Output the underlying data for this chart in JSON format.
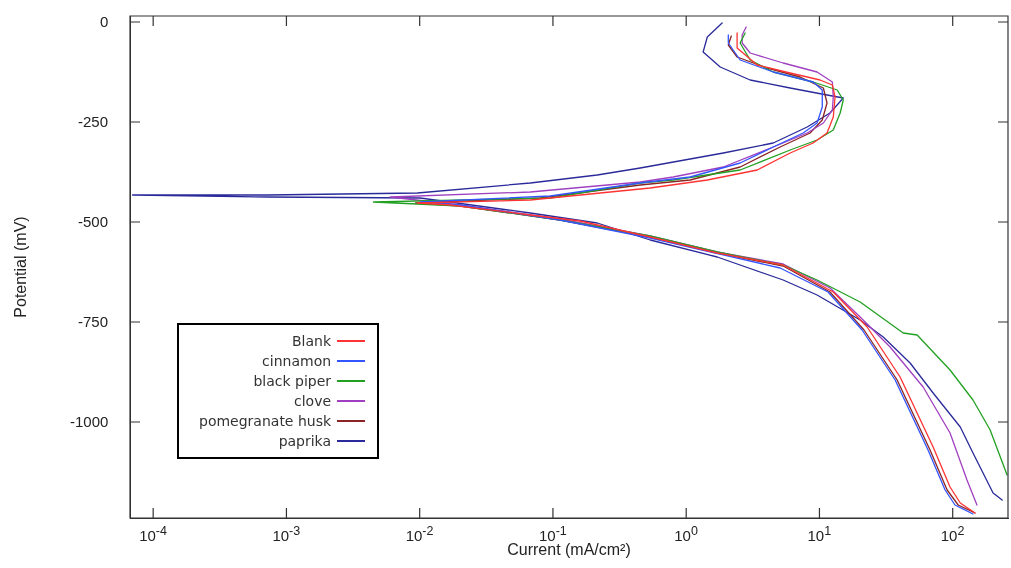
{
  "chart_data": {
    "type": "line",
    "xlabel": "Current (mA/cm²)",
    "ylabel": "Potential (mV)",
    "log": "x",
    "grid": false,
    "legend": "bottom left",
    "marker": "none",
    "line_style": "solid",
    "xlim": [
      6.7e-05,
      260
    ],
    "ylim": [
      -1240,
      15
    ],
    "xticks": [
      {
        "value": 0.0001,
        "label": "10$^{-4}$"
      },
      {
        "value": 0.001,
        "label": "10$^{-3}$"
      },
      {
        "value": 0.01,
        "label": "10$^{-2}$"
      },
      {
        "value": 0.1,
        "label": "10$^{-1}$"
      },
      {
        "value": 1,
        "label": "10$^{0}$"
      },
      {
        "value": 10,
        "label": "10$^{1}$"
      },
      {
        "value": 100,
        "label": "10$^{2}$"
      }
    ],
    "yticks": [
      0,
      -250,
      -500,
      -750,
      -1000
    ],
    "series": [
      {
        "name": "Blank",
        "color": "#ff3333",
        "x": [
          2.41,
          2.41,
          3.41,
          6.03,
          10.1,
          12.5,
          13.1,
          12.7,
          11.4,
          8.97,
          6.03,
          3.41,
          1.44,
          0.537,
          0.0676,
          0.0096,
          0.017,
          0.0676,
          0.16,
          0.537,
          1.71,
          5.34,
          12.7,
          22.8,
          40.3,
          71.3,
          95.5,
          114,
          147
        ],
        "values": [
          -27.5,
          -65,
          -107.5,
          -127.5,
          -145,
          -157.5,
          -187.5,
          -237.5,
          -277.5,
          -302.5,
          -327.5,
          -370,
          -395,
          -415,
          -445,
          -452.5,
          -457.5,
          -482.5,
          -497.5,
          -537.5,
          -577.5,
          -607.5,
          -675,
          -762.5,
          -887.5,
          -1062.5,
          -1162.5,
          -1202.5,
          -1227.5
        ]
      },
      {
        "name": "cinnamon",
        "color": "#3355ff",
        "x": [
          2.07,
          2.07,
          2.54,
          4.5,
          8.97,
          10.5,
          10.5,
          9.6,
          7.55,
          4.5,
          2.54,
          1.07,
          0.452,
          0.0955,
          0.0101,
          0.0202,
          0.113,
          0.537,
          1.65,
          5.07,
          11.6,
          20.9,
          37,
          65.3,
          87.7,
          104,
          142
        ],
        "values": [
          -32.5,
          -52.5,
          -95,
          -125,
          -150,
          -170,
          -212.5,
          -252.5,
          -277.5,
          -312.5,
          -352.5,
          -387.5,
          -402.5,
          -435,
          -450,
          -457.5,
          -495,
          -540,
          -577.5,
          -615,
          -675,
          -770,
          -895,
          -1070,
          -1170,
          -1207.5,
          -1230
        ]
      },
      {
        "name": "black piper",
        "color": "#22a022",
        "x": [
          2.77,
          2.54,
          3.02,
          4.5,
          8.97,
          13.6,
          15.1,
          14.3,
          12.7,
          9.6,
          6.03,
          2.54,
          0.798,
          0.452,
          0.0955,
          0.0045,
          0.0202,
          0.113,
          0.537,
          1.71,
          5.34,
          9.6,
          20.2,
          42.5,
          54.1,
          95.5,
          142,
          191,
          256
        ],
        "values": [
          -27.5,
          -52.5,
          -95,
          -125,
          -150,
          -170,
          -195,
          -227.5,
          -270,
          -295,
          -320,
          -370,
          -395,
          -402.5,
          -440,
          -450,
          -460,
          -495,
          -535,
          -575,
          -607.5,
          -645,
          -700,
          -777.5,
          -782.5,
          -870,
          -945,
          -1020,
          -1132.5
        ]
      },
      {
        "name": "clove",
        "color": "#a040c0",
        "x": [
          2.82,
          2.63,
          2.63,
          3.02,
          5.34,
          9.6,
          12.5,
          12.7,
          12.5,
          10.7,
          8.09,
          4.5,
          1.9,
          0.798,
          0.452,
          0.0676,
          0.006,
          0.0202,
          0.113,
          0.537,
          1.71,
          5.34,
          12,
          20.2,
          33.9,
          60,
          95.5,
          128,
          152
        ],
        "values": [
          -12.5,
          -32.5,
          -52.5,
          -77.5,
          -102.5,
          -125,
          -150,
          -187.5,
          -220,
          -252.5,
          -277.5,
          -312.5,
          -362.5,
          -387.5,
          -400,
          -425,
          -437.5,
          -457.5,
          -492.5,
          -535,
          -575,
          -605,
          -665,
          -737.5,
          -812.5,
          -912.5,
          -1027.5,
          -1145,
          -1207.5
        ]
      },
      {
        "name": "pomegranate husk",
        "color": "#8b2525",
        "x": [
          2.18,
          2.07,
          2.41,
          4.05,
          7.16,
          10.7,
          11.4,
          10.5,
          8.51,
          5.07,
          2.54,
          1.07,
          0.452,
          0.0803,
          0.0093,
          0.0202,
          0.113,
          0.537,
          1.71,
          5.34,
          12,
          21.6,
          38.3,
          67.6,
          90.8,
          110,
          147
        ],
        "values": [
          -35,
          -57.5,
          -87.5,
          -115,
          -137.5,
          -165,
          -202.5,
          -245,
          -277.5,
          -312.5,
          -362.5,
          -395,
          -407.5,
          -440,
          -452.5,
          -460,
          -495,
          -537.5,
          -577.5,
          -610,
          -675,
          -770,
          -895,
          -1070,
          -1170,
          -1207.5,
          -1227.5
        ]
      },
      {
        "name": "paprika",
        "color": "#2a2a9a",
        "x": [
          1.86,
          1.44,
          1.34,
          1.8,
          3.02,
          6.03,
          11.4,
          15.1,
          12,
          8.09,
          4.5,
          1.9,
          0.452,
          0.215,
          0.0676,
          0.0096,
          0.00072,
          7e-05,
          0.00072,
          0.0101,
          0.0676,
          0.215,
          0.537,
          1.71,
          5.34,
          9.6,
          20.2,
          30.1,
          47.9,
          71.3,
          114,
          142,
          201,
          235
        ],
        "values": [
          -2.5,
          -37.5,
          -75,
          -112.5,
          -145,
          -165,
          -182.5,
          -190,
          -227.5,
          -262.5,
          -302.5,
          -327.5,
          -365,
          -382.5,
          -402.5,
          -427.5,
          -432.5,
          -432.5,
          -437.5,
          -440,
          -477.5,
          -502.5,
          -545,
          -587.5,
          -645,
          -682.5,
          -745,
          -787.5,
          -852.5,
          -927.5,
          -1012.5,
          -1077.5,
          -1177.5,
          -1195
        ]
      }
    ]
  }
}
